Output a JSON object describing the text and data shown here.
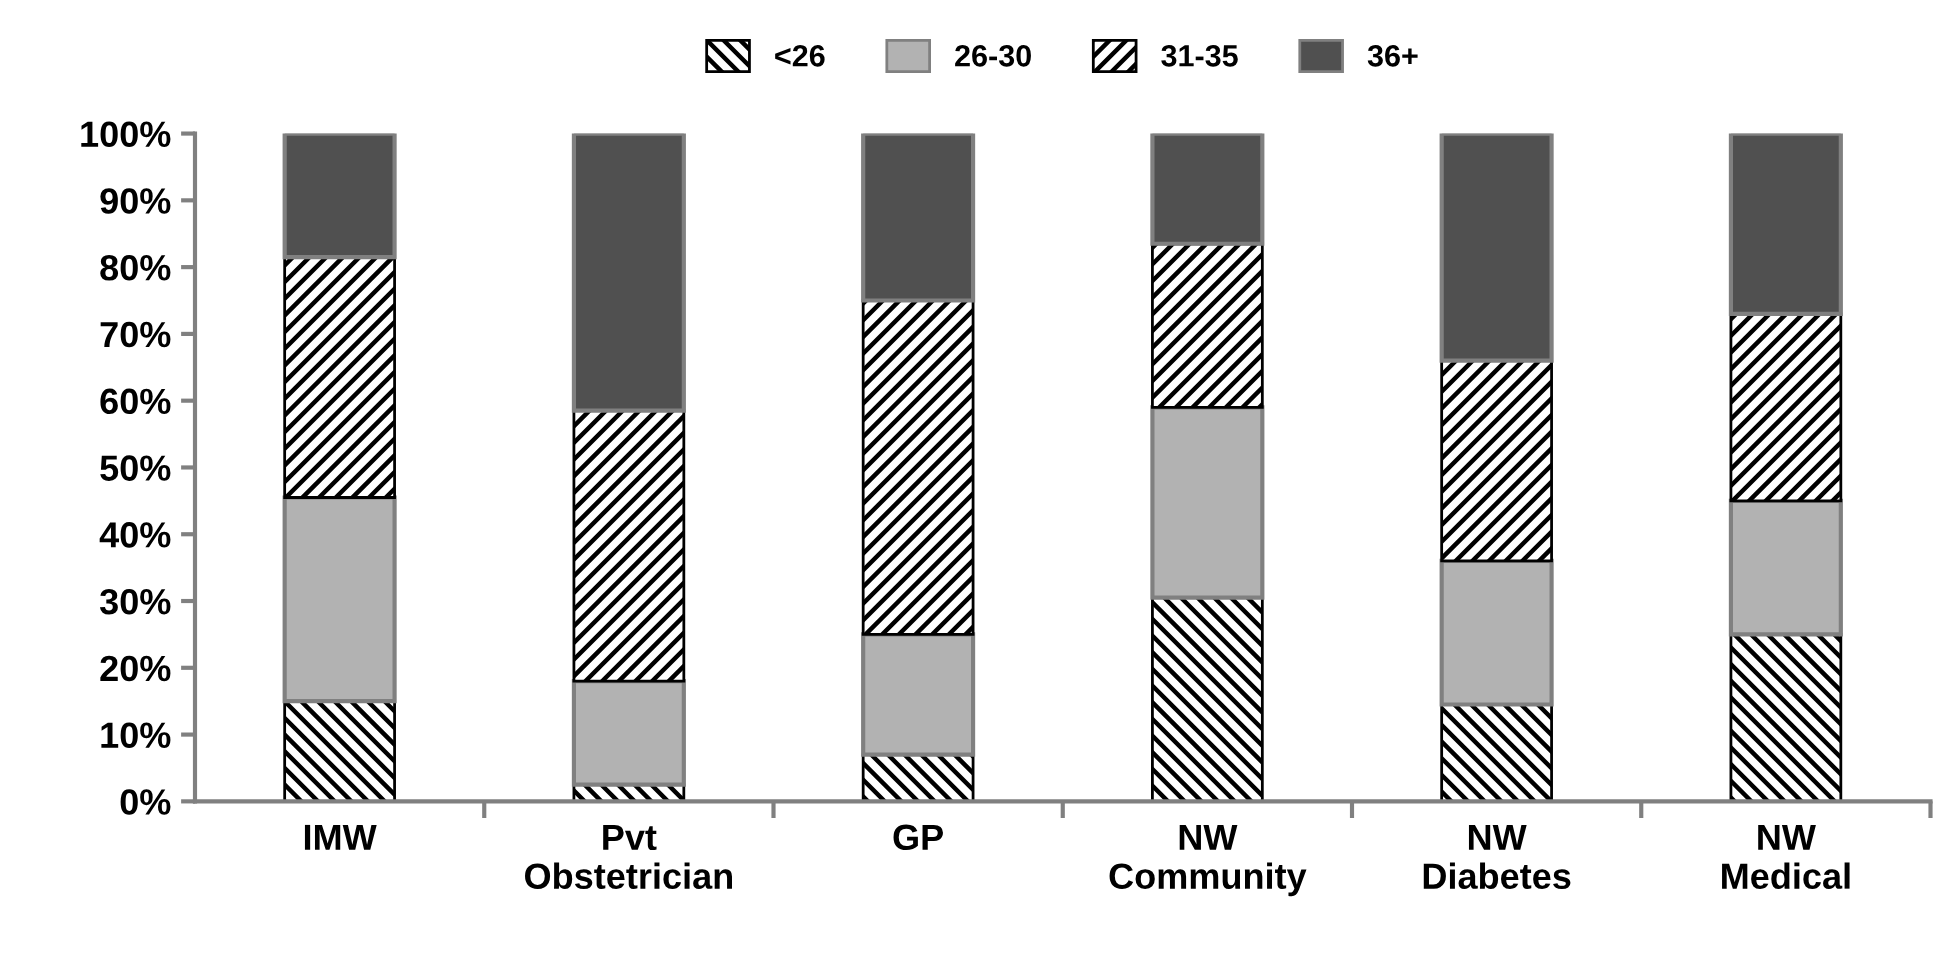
{
  "chart_data": {
    "type": "bar",
    "stacked": true,
    "legend": "top",
    "grid": false,
    "categories": [
      "IMW",
      "Pvt\nObstetrician",
      "GP",
      "NW\nCommunity",
      "NW\nDiabetes",
      "NW\nMedical"
    ],
    "ylim": [
      0,
      100
    ],
    "yticks": [
      {
        "value": 0,
        "label": "0%"
      },
      {
        "value": 10,
        "label": "10%"
      },
      {
        "value": 20,
        "label": "20%"
      },
      {
        "value": 30,
        "label": "30%"
      },
      {
        "value": 40,
        "label": "40%"
      },
      {
        "value": 50,
        "label": "50%"
      },
      {
        "value": 60,
        "label": "60%"
      },
      {
        "value": 70,
        "label": "70%"
      },
      {
        "value": 80,
        "label": "80%"
      },
      {
        "value": 90,
        "label": "90%"
      },
      {
        "value": 100,
        "label": "100%"
      }
    ],
    "series": [
      {
        "name": "<26",
        "color": "#000000",
        "values": [
          15,
          2.5,
          7,
          30.5,
          14.5,
          25
        ]
      },
      {
        "name": "26-30",
        "color": "#b2b2b2",
        "values": [
          30.5,
          15.5,
          18,
          28.5,
          21.5,
          20
        ]
      },
      {
        "name": "31-35",
        "color": "#000000",
        "values": [
          36,
          40.5,
          50,
          24.5,
          30,
          28
        ]
      },
      {
        "name": "36+",
        "color": "#505050",
        "values": [
          18.5,
          41.5,
          25,
          16.5,
          34,
          27
        ]
      }
    ]
  }
}
